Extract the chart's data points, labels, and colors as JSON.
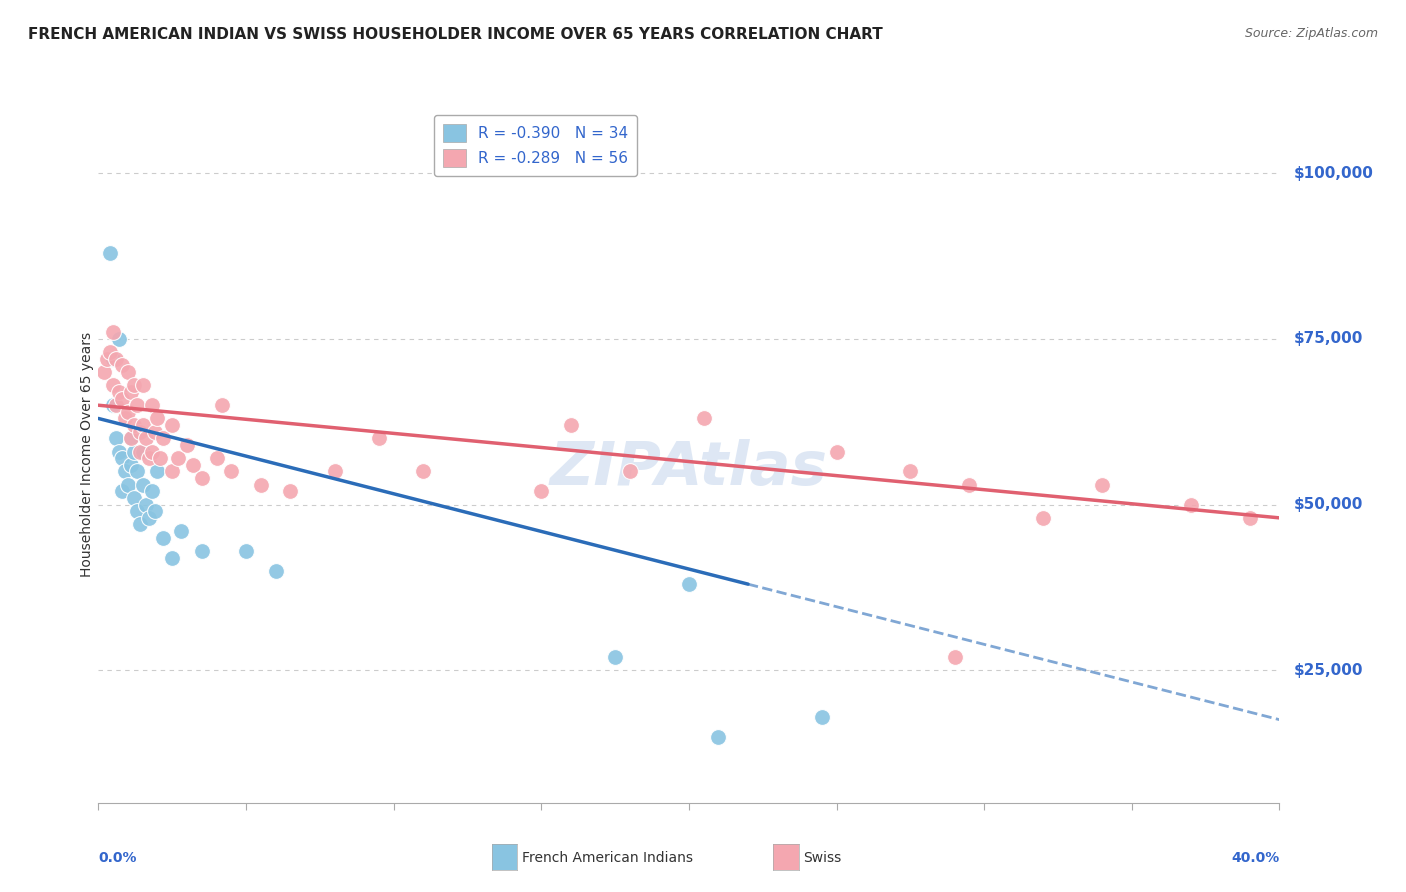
{
  "title": "FRENCH AMERICAN INDIAN VS SWISS HOUSEHOLDER INCOME OVER 65 YEARS CORRELATION CHART",
  "source": "Source: ZipAtlas.com",
  "ylabel": "Householder Income Over 65 years",
  "legend_label1": "R = -0.390   N = 34",
  "legend_label2": "R = -0.289   N = 56",
  "ytick_labels": [
    "$100,000",
    "$75,000",
    "$50,000",
    "$25,000"
  ],
  "ytick_values": [
    100000,
    75000,
    50000,
    25000
  ],
  "xlim": [
    0.0,
    0.4
  ],
  "ylim": [
    5000,
    110000
  ],
  "blue_scatter_color": "#89c4e1",
  "pink_scatter_color": "#f4a7b0",
  "blue_line_color": "#2b6cb8",
  "pink_line_color": "#e06070",
  "right_label_color": "#3366cc",
  "watermark_color": "#c8d8ee",
  "fai_x": [
    0.004,
    0.005,
    0.005,
    0.006,
    0.007,
    0.007,
    0.008,
    0.008,
    0.009,
    0.01,
    0.011,
    0.011,
    0.012,
    0.012,
    0.013,
    0.013,
    0.014,
    0.015,
    0.015,
    0.016,
    0.017,
    0.018,
    0.019,
    0.02,
    0.022,
    0.025,
    0.028,
    0.035,
    0.05,
    0.06,
    0.2,
    0.175,
    0.245,
    0.21
  ],
  "fai_y": [
    88000,
    72000,
    65000,
    60000,
    58000,
    75000,
    57000,
    52000,
    55000,
    53000,
    56000,
    60000,
    51000,
    58000,
    49000,
    55000,
    47000,
    53000,
    58000,
    50000,
    48000,
    52000,
    49000,
    55000,
    45000,
    42000,
    46000,
    43000,
    43000,
    40000,
    38000,
    27000,
    18000,
    15000
  ],
  "swiss_x": [
    0.002,
    0.003,
    0.004,
    0.005,
    0.005,
    0.006,
    0.006,
    0.007,
    0.008,
    0.008,
    0.009,
    0.01,
    0.01,
    0.011,
    0.011,
    0.012,
    0.012,
    0.013,
    0.014,
    0.014,
    0.015,
    0.015,
    0.016,
    0.017,
    0.018,
    0.018,
    0.019,
    0.02,
    0.021,
    0.022,
    0.025,
    0.025,
    0.027,
    0.03,
    0.032,
    0.035,
    0.04,
    0.042,
    0.045,
    0.055,
    0.065,
    0.08,
    0.095,
    0.11,
    0.15,
    0.18,
    0.205,
    0.25,
    0.275,
    0.295,
    0.32,
    0.34,
    0.37,
    0.39,
    0.16,
    0.29
  ],
  "swiss_y": [
    70000,
    72000,
    73000,
    68000,
    76000,
    72000,
    65000,
    67000,
    66000,
    71000,
    63000,
    64000,
    70000,
    67000,
    60000,
    62000,
    68000,
    65000,
    61000,
    58000,
    62000,
    68000,
    60000,
    57000,
    58000,
    65000,
    61000,
    63000,
    57000,
    60000,
    62000,
    55000,
    57000,
    59000,
    56000,
    54000,
    57000,
    65000,
    55000,
    53000,
    52000,
    55000,
    60000,
    55000,
    52000,
    55000,
    63000,
    58000,
    55000,
    53000,
    48000,
    53000,
    50000,
    48000,
    62000,
    27000
  ],
  "fai_line_x_solid_end": 0.22,
  "fai_line_x_start": 0.0,
  "fai_line_x_end": 0.4,
  "swiss_line_x_start": 0.0,
  "swiss_line_x_end": 0.4
}
